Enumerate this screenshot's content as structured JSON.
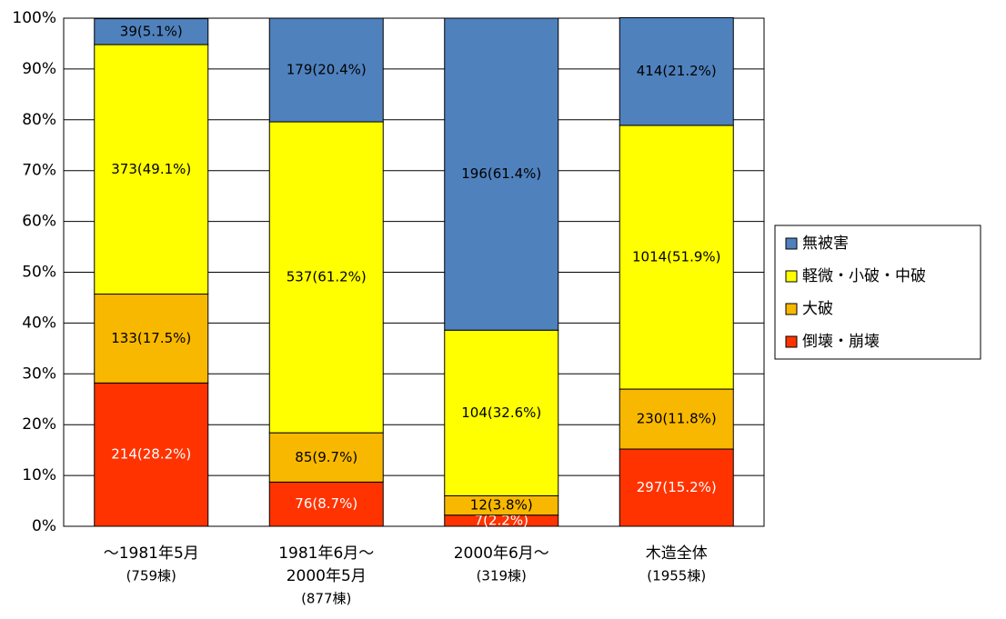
{
  "chart_data": {
    "type": "stacked_bar",
    "categories": [
      [
        "～1981年5月",
        "(759棟)"
      ],
      [
        "1981年6月～",
        "2000年5月",
        "(877棟)"
      ],
      [
        "2000年6月～",
        "(319棟)"
      ],
      [
        "木造全体",
        "(1955棟)"
      ]
    ],
    "series": [
      {
        "name": "倒壊・崩壊",
        "color": "#ff3300",
        "label_color": "#ffffff",
        "values": [
          28.2,
          8.7,
          2.2,
          15.2
        ],
        "value_labels": [
          "214(28.2%)",
          "76(8.7%)",
          "7(2.2%)",
          "297(15.2%)"
        ]
      },
      {
        "name": "大破",
        "color": "#f9b800",
        "label_color": "#000000",
        "values": [
          17.5,
          9.7,
          3.8,
          11.8
        ],
        "value_labels": [
          "133(17.5%)",
          "85(9.7%)",
          "12(3.8%)",
          "230(11.8%)"
        ]
      },
      {
        "name": "軽微・小破・中破",
        "color": "#ffff00",
        "label_color": "#000000",
        "values": [
          49.1,
          61.2,
          32.6,
          51.9
        ],
        "value_labels": [
          "373(49.1%)",
          "537(61.2%)",
          "104(32.6%)",
          "1014(51.9%)"
        ]
      },
      {
        "name": "無被害",
        "color": "#4f81bd",
        "label_color": "#000000",
        "values": [
          5.1,
          20.4,
          61.4,
          21.2
        ],
        "value_labels": [
          "39(5.1%)",
          "179(20.4%)",
          "196(61.4%)",
          "414(21.2%)"
        ]
      }
    ],
    "ylim": [
      0,
      100
    ],
    "yticks": [
      {
        "value": 0,
        "label": "0%"
      },
      {
        "value": 10,
        "label": "10%"
      },
      {
        "value": 20,
        "label": "20%"
      },
      {
        "value": 30,
        "label": "30%"
      },
      {
        "value": 40,
        "label": "40%"
      },
      {
        "value": 50,
        "label": "50%"
      },
      {
        "value": 60,
        "label": "60%"
      },
      {
        "value": 70,
        "label": "70%"
      },
      {
        "value": 80,
        "label": "80%"
      },
      {
        "value": 90,
        "label": "90%"
      },
      {
        "value": 100,
        "label": "100%"
      }
    ],
    "grid": true,
    "legend": "right"
  }
}
